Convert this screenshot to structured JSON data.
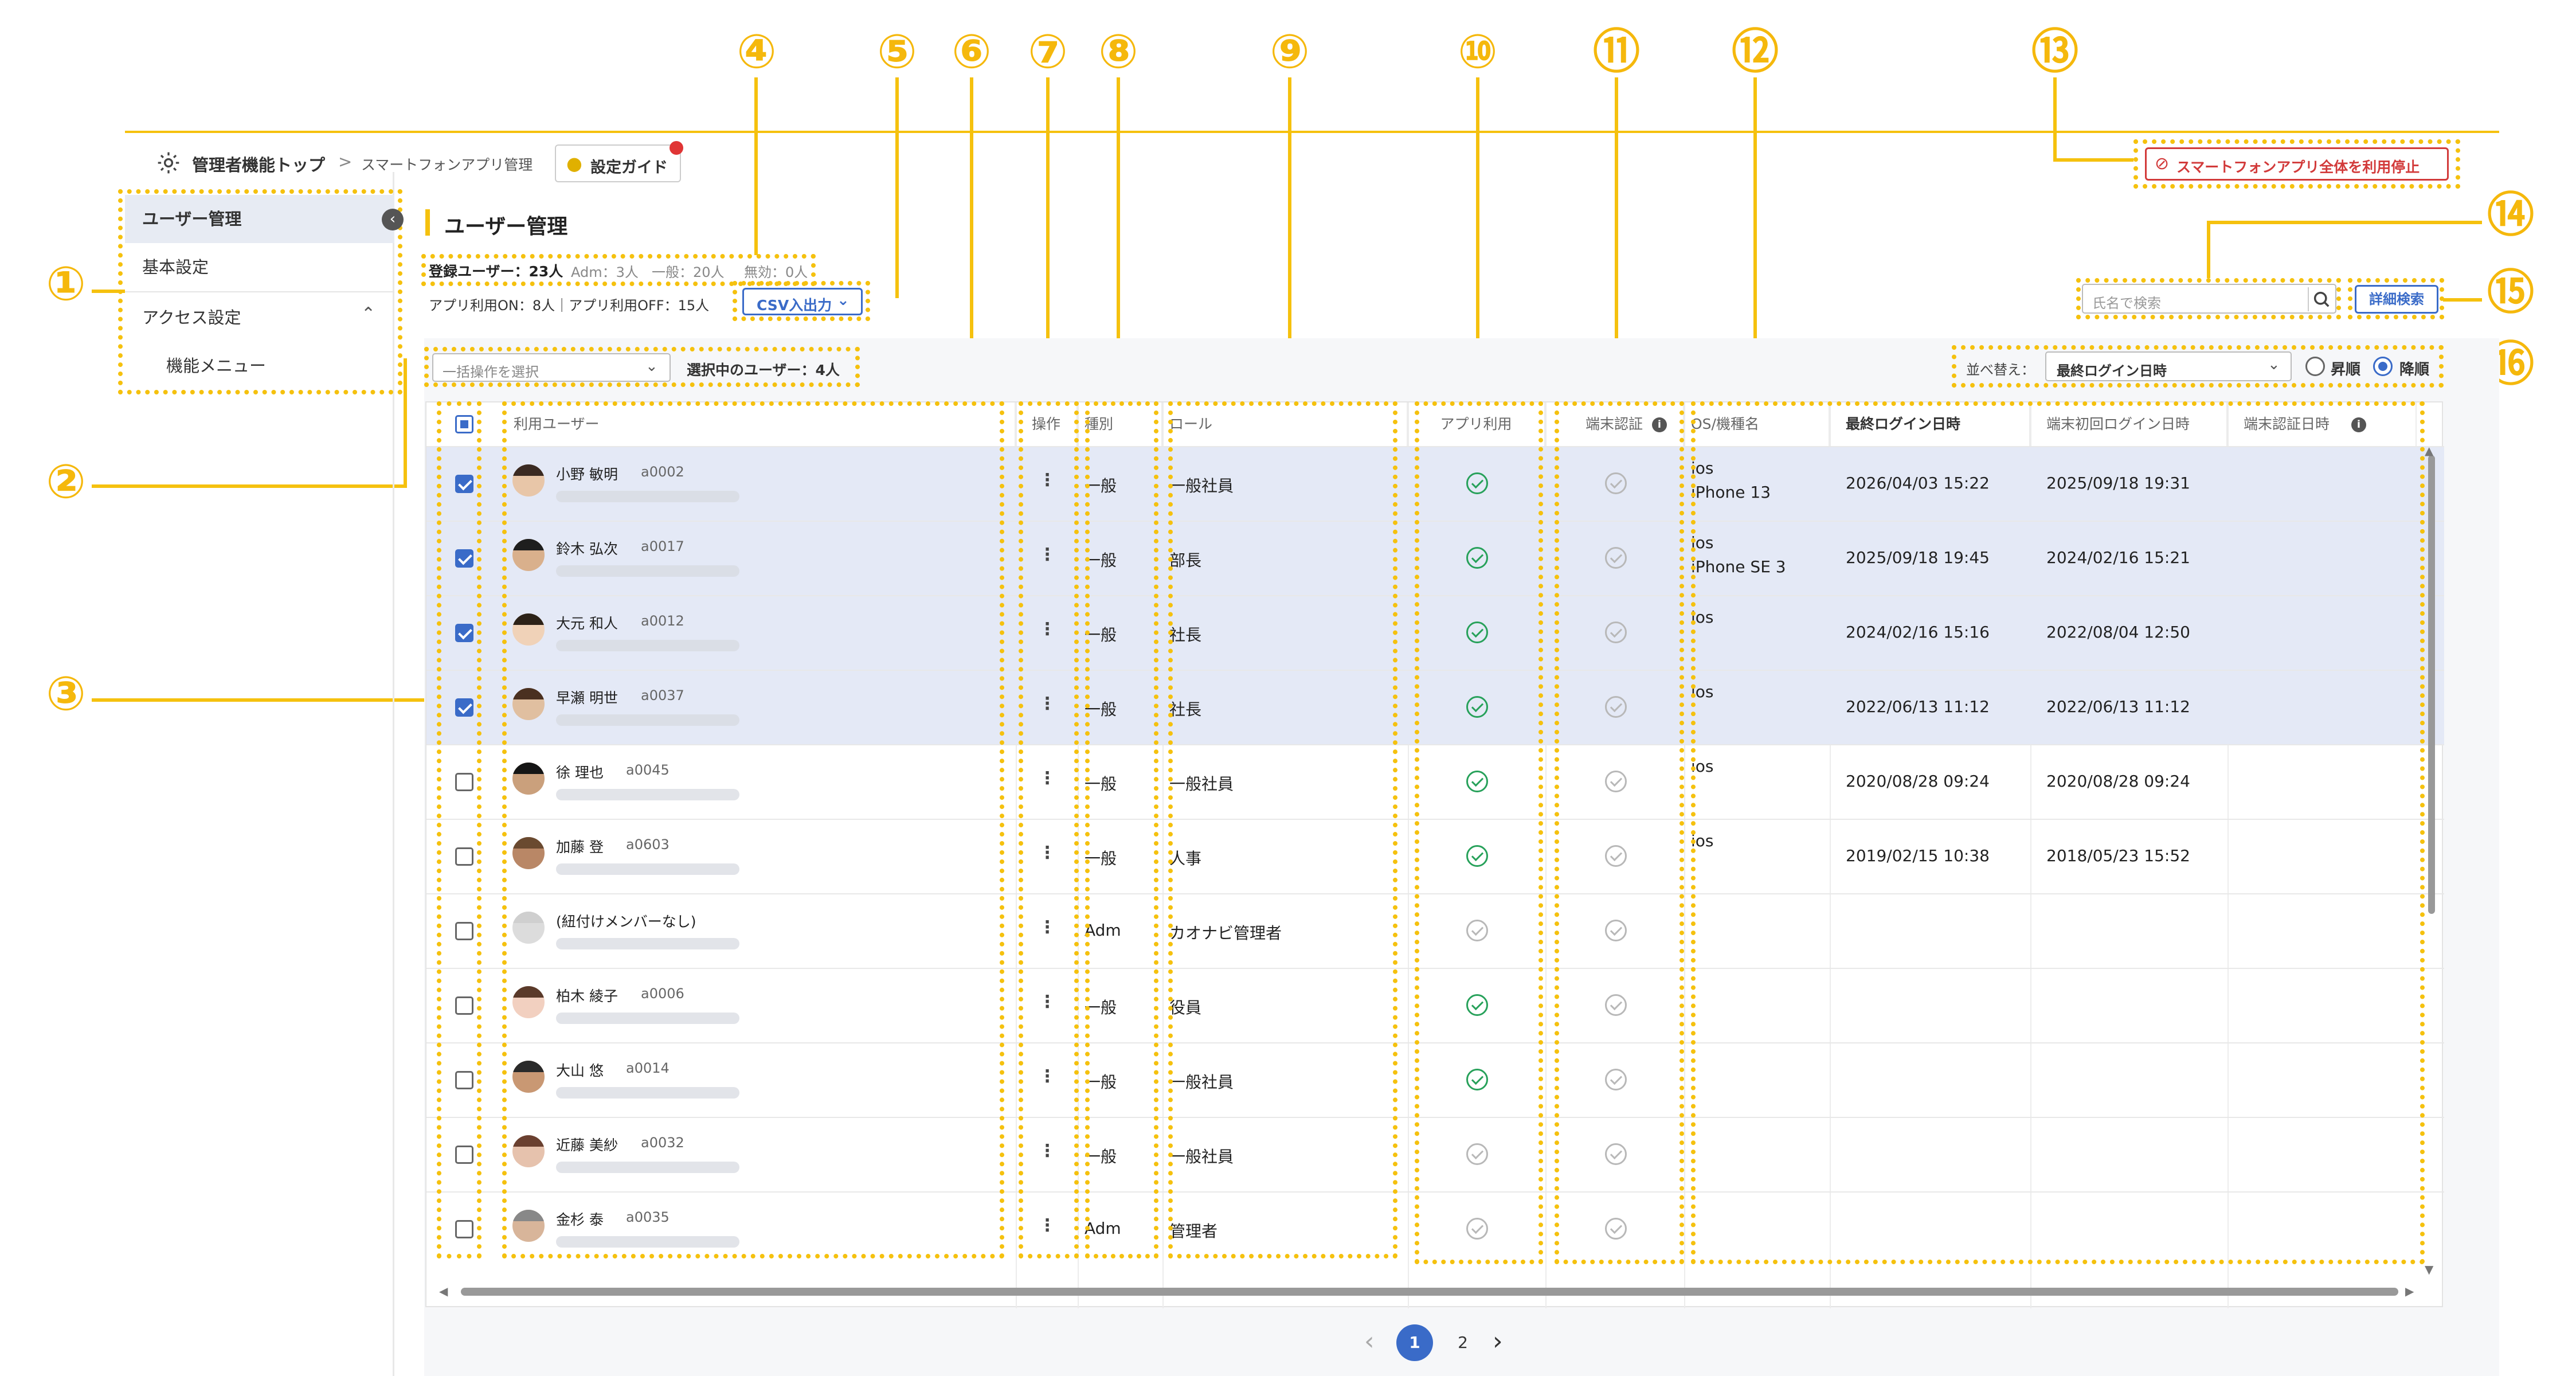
{
  "callouts": [
    "①",
    "②",
    "③",
    "④",
    "⑤",
    "⑥",
    "⑦",
    "⑧",
    "⑨",
    "⑩",
    "⑪",
    "⑫",
    "⑬",
    "⑭",
    "⑮",
    "⑯"
  ],
  "breadcrumb": {
    "top": "管理者機能トップ",
    "separator": ">",
    "current": "スマートフォンアプリ管理",
    "guide": "設定ガイド"
  },
  "stop_button": "スマートフォンアプリ全体を利用停止",
  "sidebar": {
    "items": [
      "ユーザー管理",
      "基本設定",
      "アクセス設定",
      "機能メニュー"
    ]
  },
  "page_title": "ユーザー管理",
  "stats": {
    "line1": "登録ユーザー：23人",
    "adm": "Adm：3人",
    "general": "一般：20人",
    "invalid": "無効：0人",
    "line2": "アプリ利用ON：8人｜アプリ利用OFF：15人",
    "csv": "CSV入出力"
  },
  "bulk": {
    "placeholder": "一括操作を選択",
    "selected": "選択中のユーザー：4人"
  },
  "search": {
    "placeholder": "氏名で検索",
    "advanced": "詳細検索"
  },
  "sort": {
    "label": "並べ替え：",
    "value": "最終ログイン日時",
    "asc": "昇順",
    "desc": "降順"
  },
  "columns": [
    "利用ユーザー",
    "操作",
    "種別",
    "ロール",
    "アプリ利用",
    "端末認証",
    "OS/機種名",
    "最終ログイン日時",
    "端末初回ログイン日時",
    "端末認証日時"
  ],
  "rows": [
    {
      "name": "小野 敏明",
      "id": "a0002",
      "type": "一般",
      "role": "一般社員",
      "app": true,
      "os": "ios",
      "model": "iPhone 13",
      "last": "2026/04/03 15:22",
      "first": "2025/09/18 19:31",
      "checked": true
    },
    {
      "name": "鈴木 弘次",
      "id": "a0017",
      "type": "一般",
      "role": "部長",
      "app": true,
      "os": "ios",
      "model": "iPhone SE 3",
      "last": "2025/09/18 19:45",
      "first": "2024/02/16 15:21",
      "checked": true
    },
    {
      "name": "大元 和人",
      "id": "a0012",
      "type": "一般",
      "role": "社長",
      "app": true,
      "os": "ios",
      "model": "",
      "last": "2024/02/16 15:16",
      "first": "2022/08/04 12:50",
      "checked": true
    },
    {
      "name": "早瀬 明世",
      "id": "a0037",
      "type": "一般",
      "role": "社長",
      "app": true,
      "os": "ios",
      "model": "",
      "last": "2022/06/13 11:12",
      "first": "2022/06/13 11:12",
      "checked": true
    },
    {
      "name": "徐 理也",
      "id": "a0045",
      "type": "一般",
      "role": "一般社員",
      "app": true,
      "os": "ios",
      "model": "",
      "last": "2020/08/28 09:24",
      "first": "2020/08/28 09:24",
      "checked": false
    },
    {
      "name": "加藤 登",
      "id": "a0603",
      "type": "一般",
      "role": "人事",
      "app": true,
      "os": "ios",
      "model": "",
      "last": "2019/02/15 10:38",
      "first": "2018/05/23 15:52",
      "checked": false
    },
    {
      "name": "(紐付けメンバーなし)",
      "id": "",
      "type": "Adm",
      "role": "カオナビ管理者",
      "app": false,
      "os": "",
      "model": "",
      "last": "",
      "first": "",
      "checked": false
    },
    {
      "name": "柏木 綾子",
      "id": "a0006",
      "type": "一般",
      "role": "役員",
      "app": true,
      "os": "",
      "model": "",
      "last": "",
      "first": "",
      "checked": false
    },
    {
      "name": "大山 悠",
      "id": "a0014",
      "type": "一般",
      "role": "一般社員",
      "app": true,
      "os": "",
      "model": "",
      "last": "",
      "first": "",
      "checked": false
    },
    {
      "name": "近藤 美紗",
      "id": "a0032",
      "type": "一般",
      "role": "一般社員",
      "app": false,
      "os": "",
      "model": "",
      "last": "",
      "first": "",
      "checked": false
    },
    {
      "name": "金杉 泰",
      "id": "a0035",
      "type": "Adm",
      "role": "管理者",
      "app": false,
      "os": "",
      "model": "",
      "last": "",
      "first": "",
      "checked": false
    }
  ],
  "pagination": {
    "prev": "‹",
    "pages": [
      "1",
      "2"
    ],
    "next": "›"
  },
  "colors": {
    "accent": "#3a6bc8",
    "callout": "#f5b80c",
    "danger": "#d23a3a",
    "ok": "#27a15a"
  }
}
